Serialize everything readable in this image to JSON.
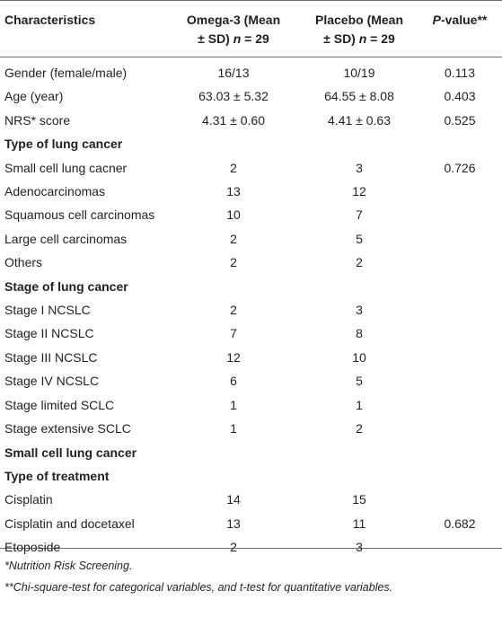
{
  "header": {
    "characteristics": "Characteristics",
    "omega": {
      "line1": "Omega-3 (Mean",
      "line2_pre": "± SD) ",
      "n_italic": "n",
      "line2_post": " = 29"
    },
    "placebo": {
      "line1": "Placebo (Mean",
      "line2_pre": "± SD) ",
      "n_italic": "n",
      "line2_post": " = 29"
    },
    "pvalue": {
      "p_italic": "P",
      "rest": "-value**"
    }
  },
  "rows": [
    {
      "label": "Gender (female/male)",
      "omega": "16/13",
      "placebo": "10/19",
      "p": "0.113"
    },
    {
      "label": "Age (year)",
      "omega": "63.03 ± 5.32",
      "placebo": "64.55 ± 8.08",
      "p": "0.403"
    },
    {
      "label": "NRS* score",
      "omega": "4.31 ± 0.60",
      "placebo": "4.41 ± 0.63",
      "p": "0.525"
    },
    {
      "section": "Type of lung cancer"
    },
    {
      "label": "Small cell lung cacner",
      "omega": "2",
      "placebo": "3",
      "p": "0.726"
    },
    {
      "label": "Adenocarcinomas",
      "omega": "13",
      "placebo": "12",
      "p": ""
    },
    {
      "label": "Squamous cell carcinomas",
      "omega": "10",
      "placebo": "7",
      "p": ""
    },
    {
      "label": "Large cell carcinomas",
      "omega": "2",
      "placebo": "5",
      "p": ""
    },
    {
      "label": "Others",
      "omega": "2",
      "placebo": "2",
      "p": ""
    },
    {
      "section": "Stage of lung cancer"
    },
    {
      "label": "Stage I NCSLC",
      "omega": "2",
      "placebo": "3",
      "p": ""
    },
    {
      "label": "Stage II NCSLC",
      "omega": "7",
      "placebo": "8",
      "p": ""
    },
    {
      "label": "Stage III NCSLC",
      "omega": "12",
      "placebo": "10",
      "p": ""
    },
    {
      "label": "Stage IV NCSLC",
      "omega": "6",
      "placebo": "5",
      "p": ""
    },
    {
      "label": "Stage limited SCLC",
      "omega": "1",
      "placebo": "1",
      "p": ""
    },
    {
      "label": "Stage extensive SCLC",
      "omega": "1",
      "placebo": "2",
      "p": ""
    },
    {
      "section": "Small cell lung cancer"
    },
    {
      "section": "Type of treatment"
    },
    {
      "label": "Cisplatin",
      "omega": "14",
      "placebo": "15",
      "p": ""
    },
    {
      "label": "Cisplatin and docetaxel",
      "omega": "13",
      "placebo": "11",
      "p": "0.682"
    },
    {
      "label": "Etoposide",
      "omega": "2",
      "placebo": "3",
      "p": ""
    }
  ],
  "footnotes": [
    "*Nutrition Risk Screening.",
    "**Chi-square-test for categorical variables, and t-test for quantitative variables."
  ]
}
